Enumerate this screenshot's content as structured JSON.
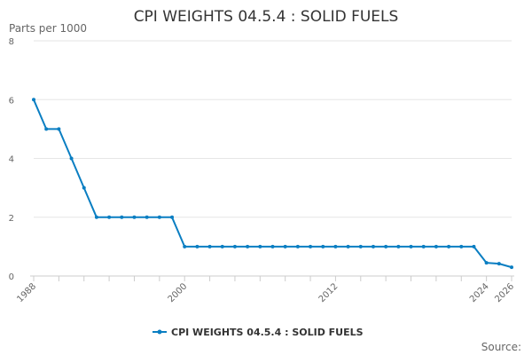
{
  "chart_data": {
    "type": "line",
    "title": "CPI WEIGHTS 04.5.4 : SOLID FUELS",
    "ylabel": "Parts per 1000",
    "xlabel": "",
    "xlim": [
      1988,
      2026
    ],
    "ylim": [
      0,
      8
    ],
    "y_ticks": [
      "0",
      "2",
      "4",
      "6",
      "8"
    ],
    "x_ticks": [
      "1988",
      "2000",
      "2012",
      "2024",
      "2026"
    ],
    "grid": "horizontal",
    "legend": "bottom-center",
    "color": "#0a7ec2",
    "series": [
      {
        "name": "CPI WEIGHTS 04.5.4 : SOLID FUELS",
        "x": [
          1988,
          1989,
          1990,
          1991,
          1992,
          1993,
          1994,
          1995,
          1996,
          1997,
          1998,
          1999,
          2000,
          2001,
          2002,
          2003,
          2004,
          2005,
          2006,
          2007,
          2008,
          2009,
          2010,
          2011,
          2012,
          2013,
          2014,
          2015,
          2016,
          2017,
          2018,
          2019,
          2020,
          2021,
          2022,
          2023,
          2024,
          2025,
          2026
        ],
        "values": [
          6,
          5,
          5,
          4,
          3,
          2,
          2,
          2,
          2,
          2,
          2,
          2,
          1,
          1,
          1,
          1,
          1,
          1,
          1,
          1,
          1,
          1,
          1,
          1,
          1,
          1,
          1,
          1,
          1,
          1,
          1,
          1,
          1,
          1,
          1,
          1,
          0.45,
          0.42,
          0.3
        ]
      }
    ]
  },
  "source_label": "Source:"
}
